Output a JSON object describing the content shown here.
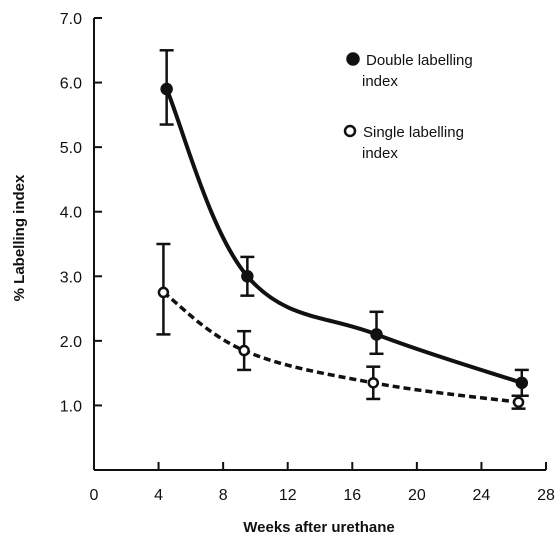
{
  "chart_data": {
    "type": "line",
    "title": "",
    "xlabel": "Weeks after urethane",
    "ylabel": "% Labelling index",
    "xlim": [
      0,
      28
    ],
    "ylim": [
      0,
      7.0
    ],
    "x_ticks": [
      "0",
      "4",
      "8",
      "12",
      "16",
      "20",
      "24",
      "28"
    ],
    "y_ticks": [
      "1.0",
      "2.0",
      "3.0",
      "4.0",
      "5.0",
      "6.0",
      "7.0"
    ],
    "grid": false,
    "legend_position": "top-right",
    "series": [
      {
        "name": "Double labelling index",
        "style": "solid",
        "marker": "filled-circle",
        "x": [
          4.5,
          9.5,
          17.5,
          26.5
        ],
        "y": [
          5.9,
          3.0,
          2.1,
          1.35
        ],
        "err_low": [
          5.35,
          2.7,
          1.8,
          1.15
        ],
        "err_high": [
          6.5,
          3.3,
          2.45,
          1.55
        ]
      },
      {
        "name": "Single labelling index",
        "style": "dashed",
        "marker": "open-circle",
        "x": [
          4.3,
          9.3,
          17.3,
          26.3
        ],
        "y": [
          2.75,
          1.85,
          1.35,
          1.05
        ],
        "err_low": [
          2.1,
          1.55,
          1.1,
          0.95
        ],
        "err_high": [
          3.5,
          2.15,
          1.6,
          1.15
        ]
      }
    ]
  }
}
